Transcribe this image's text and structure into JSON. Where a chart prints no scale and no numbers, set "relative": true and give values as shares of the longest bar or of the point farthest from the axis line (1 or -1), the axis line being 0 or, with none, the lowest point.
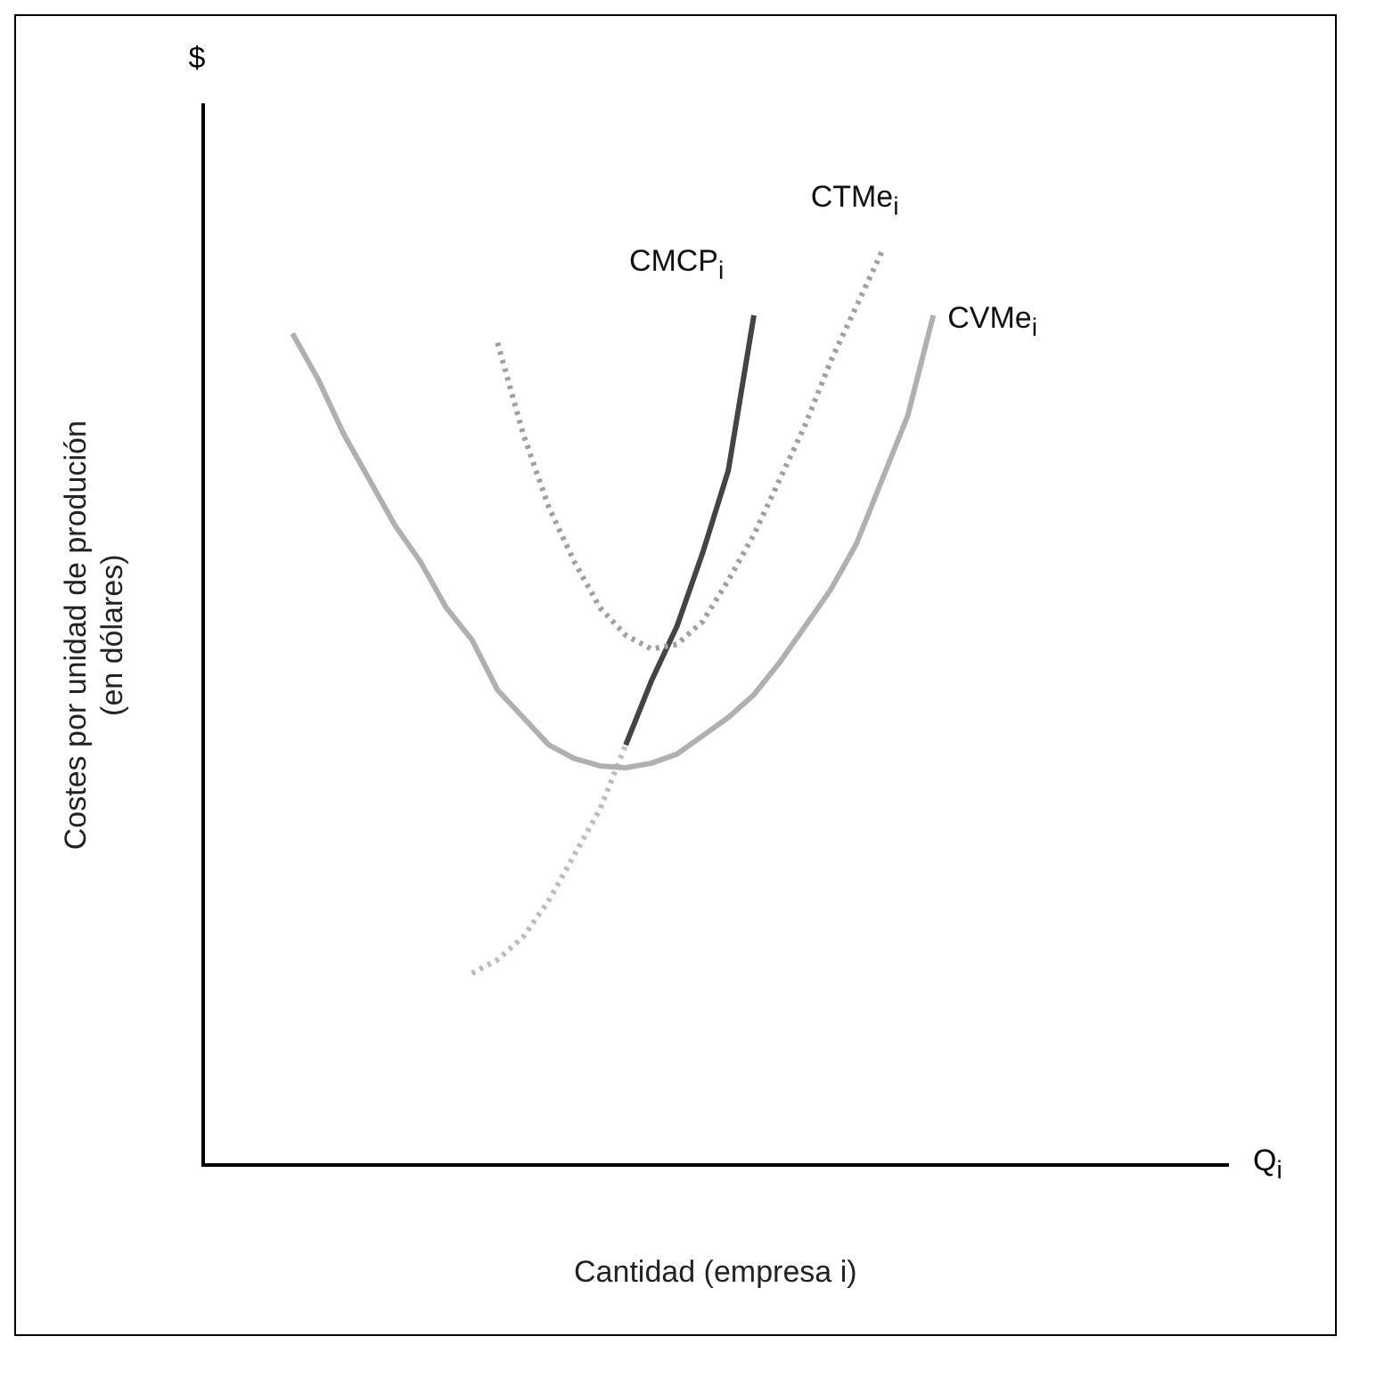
{
  "chart_data": {
    "type": "line",
    "relative": true,
    "legend": false,
    "grid": false,
    "marker": "none",
    "ylabel": "Costes por unidad de produción\n(en dólares)",
    "xlabel": "Cantidad (empresa i)",
    "annotations": [
      "$",
      "Q$_{i}$"
    ],
    "categories": [
      null,
      null,
      null,
      null,
      null,
      null,
      null,
      null,
      null,
      null,
      null,
      null,
      null,
      null,
      null,
      null,
      null,
      null,
      null,
      null,
      null,
      null,
      null,
      null,
      null,
      null,
      null,
      null,
      null,
      null,
      null,
      null,
      null,
      null,
      null,
      null,
      null,
      null,
      null,
      null
    ],
    "series": [
      {
        "name": "CVMe$_{i}$",
        "color": "#b0b0b0",
        "line_style": "solid",
        "values": [
          null,
          null,
          null,
          0.91,
          0.86,
          0.8,
          0.75,
          0.7,
          0.66,
          0.61,
          0.575,
          0.52,
          0.49,
          0.46,
          0.445,
          0.437,
          0.435,
          0.44,
          0.45,
          0.47,
          0.49,
          0.515,
          0.55,
          0.59,
          0.63,
          0.68,
          0.75,
          0.82,
          0.93,
          null,
          null,
          null,
          null,
          null,
          null,
          null,
          null,
          null,
          null,
          null
        ]
      },
      {
        "name": "CTMe$_{i}$",
        "color": "#a0a0a0",
        "line_style": "dotted",
        "values": [
          null,
          null,
          null,
          null,
          null,
          null,
          null,
          null,
          null,
          null,
          null,
          0.9,
          0.8,
          0.72,
          0.66,
          0.61,
          0.58,
          0.565,
          0.57,
          0.595,
          0.64,
          0.69,
          0.75,
          0.81,
          0.88,
          0.94,
          1.0,
          null,
          null,
          null,
          null,
          null,
          null,
          null,
          null,
          null,
          null,
          null,
          null,
          null
        ]
      },
      {
        "name": "CMCP$_{i}$",
        "color": "#444444",
        "line_style": "solid",
        "values": [
          null,
          null,
          null,
          null,
          null,
          null,
          null,
          null,
          null,
          null,
          null,
          null,
          null,
          null,
          null,
          null,
          0.46,
          0.53,
          0.59,
          0.67,
          0.76,
          0.93,
          null,
          null,
          null,
          null,
          null,
          null,
          null,
          null,
          null,
          null,
          null,
          null,
          null,
          null,
          null,
          null,
          null,
          null
        ]
      },
      {
        "color": "#bdbdbd",
        "line_style": "dotted",
        "values": [
          null,
          null,
          null,
          null,
          null,
          null,
          null,
          null,
          null,
          null,
          0.21,
          0.225,
          0.25,
          0.29,
          0.34,
          0.39,
          0.46,
          null,
          null,
          null,
          null,
          null,
          null,
          null,
          null,
          null,
          null,
          null,
          null,
          null,
          null,
          null,
          null,
          null,
          null,
          null,
          null,
          null,
          null,
          null
        ]
      }
    ]
  }
}
